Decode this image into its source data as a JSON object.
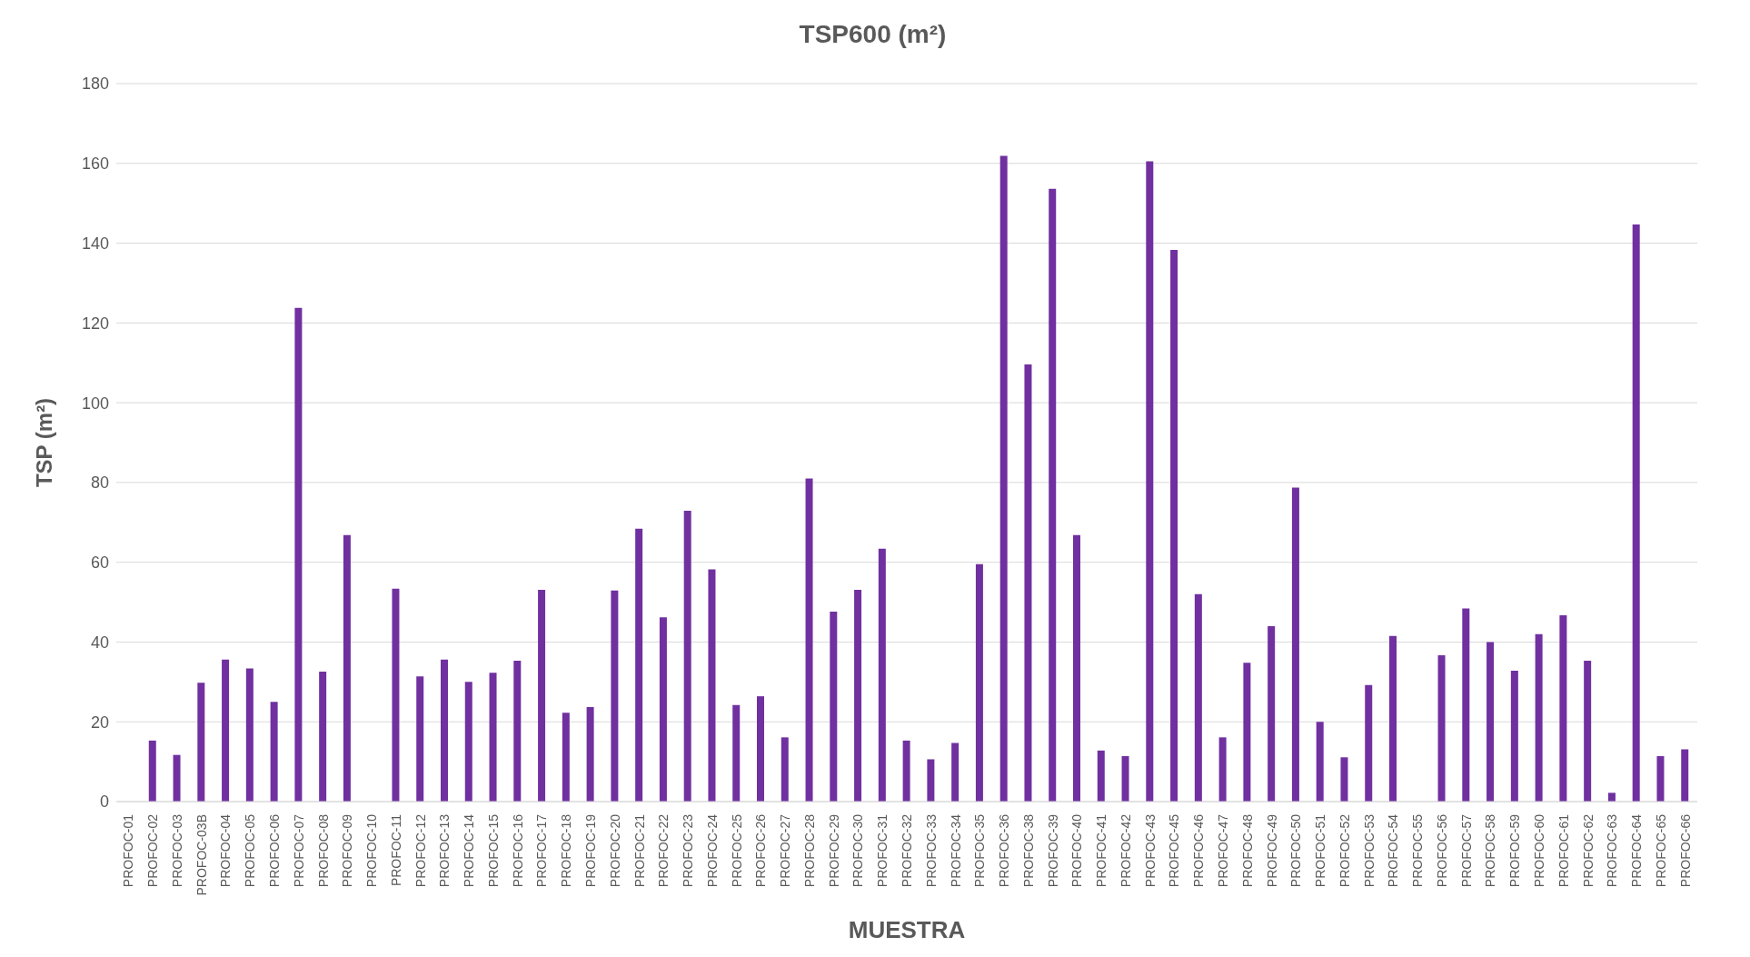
{
  "chart_data": {
    "type": "bar",
    "title": "TSP600 (m²)",
    "xlabel": "MUESTRA",
    "ylabel": "TSP (m²)",
    "categories": [
      "PROFOC-01",
      "PROFOC-02",
      "PROFOC-03",
      "PROFOC-03B",
      "PROFOC-04",
      "PROFOC-05",
      "PROFOC-06",
      "PROFOC-07",
      "PROFOC-08",
      "PROFOC-09",
      "PROFOC-10",
      "PROFOC-11",
      "PROFOC-12",
      "PROFOC-13",
      "PROFOC-14",
      "PROFOC-15",
      "PROFOC-16",
      "PROFOC-17",
      "PROFOC-18",
      "PROFOC-19",
      "PROFOC-20",
      "PROFOC-21",
      "PROFOC-22",
      "PROFOC-23",
      "PROFOC-24",
      "PROFOC-25",
      "PROFOC-26",
      "PROFOC-27",
      "PROFOC-28",
      "PROFOC-29",
      "PROFOC-30",
      "PROFOC-31",
      "PROFOC-32",
      "PROFOC-33",
      "PROFOC-34",
      "PROFOC-35",
      "PROFOC-36",
      "PROFOC-38",
      "PROFOC-39",
      "PROFOC-40",
      "PROFOC-41",
      "PROFOC-42",
      "PROFOC-43",
      "PROFOC-45",
      "PROFOC-46",
      "PROFOC-47",
      "PROFOC-48",
      "PROFOC-49",
      "PROFOC-50",
      "PROFOC-51",
      "PROFOC-52",
      "PROFOC-53",
      "PROFOC-54",
      "PROFOC-55",
      "PROFOC-56",
      "PROFOC-57",
      "PROFOC-58",
      "PROFOC-59",
      "PROFOC-60",
      "PROFOC-61",
      "PROFOC-62",
      "PROFOC-63",
      "PROFOC-64",
      "PROFOC-65",
      "PROFOC-66"
    ],
    "values": [
      null,
      15.3,
      11.7,
      29.8,
      35.6,
      33.4,
      25,
      123.8,
      32.6,
      66.8,
      null,
      53.4,
      31.4,
      35.6,
      30,
      32.3,
      35.3,
      53.1,
      22.3,
      23.7,
      52.9,
      68.4,
      46.2,
      72.9,
      58.2,
      24.2,
      26.4,
      16.1,
      81,
      47.6,
      53.1,
      63.4,
      15.3,
      10.6,
      14.7,
      59.5,
      161.9,
      109.6,
      153.6,
      66.8,
      12.8,
      11.4,
      160.5,
      138.3,
      52,
      16.1,
      34.8,
      44,
      78.7,
      20,
      11.1,
      29.2,
      41.5,
      null,
      36.7,
      48.4,
      40,
      32.8,
      42,
      46.7,
      35.3,
      2.2,
      144.7,
      11.4,
      13.1
    ],
    "color": "#7030a0",
    "ylim": [
      0,
      180
    ],
    "yticks": [
      0,
      20,
      40,
      60,
      80,
      100,
      120,
      140,
      160,
      180
    ],
    "grid": "y"
  }
}
